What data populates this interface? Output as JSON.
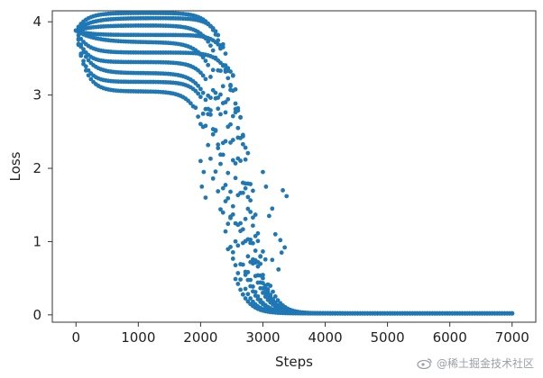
{
  "chart_data": {
    "type": "scatter",
    "title": "",
    "xlabel": "Steps",
    "ylabel": "Loss",
    "xlim": [
      -380,
      7380
    ],
    "ylim": [
      -0.1,
      4.15
    ],
    "xticks": [
      0,
      1000,
      2000,
      3000,
      4000,
      5000,
      6000,
      7000
    ],
    "yticks": [
      0,
      1,
      2,
      3,
      4
    ],
    "color": "#1f77b4",
    "grid": false,
    "legend": "none",
    "step": 40,
    "runs": [
      {
        "plateau": 4.12,
        "rise": 500,
        "drop_mid": 2650,
        "drop_width": 160,
        "floor": 0.02,
        "end": 7000
      },
      {
        "plateau": 4.05,
        "rise": 700,
        "drop_mid": 2700,
        "drop_width": 150,
        "floor": 0.02,
        "end": 6000
      },
      {
        "plateau": 3.95,
        "rise": 800,
        "drop_mid": 2600,
        "drop_width": 170,
        "floor": 0.02,
        "end": 7000
      },
      {
        "plateau": 3.82,
        "rise": 600,
        "drop_mid": 2750,
        "drop_width": 140,
        "floor": 0.02,
        "end": 7000
      },
      {
        "plateau": 3.72,
        "rise": 900,
        "drop_mid": 2550,
        "drop_width": 180,
        "floor": 0.02,
        "end": 7000
      },
      {
        "plateau": 3.58,
        "rise": 500,
        "drop_mid": 2800,
        "drop_width": 150,
        "floor": 0.02,
        "end": 7000
      },
      {
        "plateau": 3.45,
        "rise": 400,
        "drop_mid": 2500,
        "drop_width": 160,
        "floor": 0.02,
        "end": 5500
      },
      {
        "plateau": 3.3,
        "rise": 500,
        "drop_mid": 2450,
        "drop_width": 170,
        "floor": 0.02,
        "end": 7000
      },
      {
        "plateau": 3.18,
        "rise": 400,
        "drop_mid": 2400,
        "drop_width": 150,
        "floor": 0.02,
        "end": 7000
      },
      {
        "plateau": 3.05,
        "rise": 450,
        "drop_mid": 2300,
        "drop_width": 160,
        "floor": 0.02,
        "end": 7000
      }
    ],
    "outliers": [
      [
        2000,
        2.1
      ],
      [
        2050,
        1.95
      ],
      [
        2020,
        1.75
      ],
      [
        2080,
        1.6
      ],
      [
        3000,
        1.95
      ],
      [
        3050,
        1.75
      ],
      [
        3150,
        1.45
      ],
      [
        3100,
        1.35
      ],
      [
        3320,
        1.7
      ],
      [
        3380,
        1.62
      ],
      [
        3350,
        0.92
      ],
      [
        3300,
        0.85
      ],
      [
        3200,
        1.1
      ],
      [
        3280,
        1.02
      ],
      [
        3150,
        0.75
      ],
      [
        3250,
        0.62
      ]
    ]
  },
  "watermark": {
    "text": "@稀土掘金技术社区",
    "logo_icon": "weibo-logo-icon"
  }
}
